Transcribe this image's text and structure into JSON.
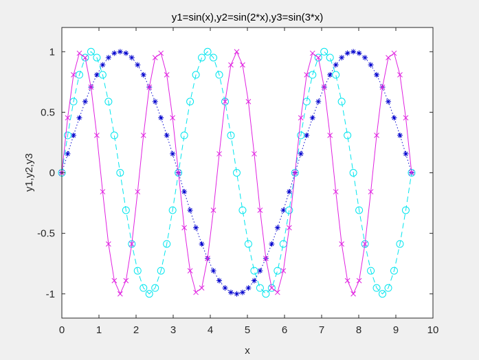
{
  "chart_data": {
    "type": "line",
    "title": "y1=sin(x),y2=sin(2*x),y3=sin(3*x)",
    "xlabel": "x",
    "ylabel": "y1,y2,y3",
    "xlim": [
      0,
      10
    ],
    "ylim": [
      -1.2,
      1.2
    ],
    "xticks": [
      0,
      1,
      2,
      3,
      4,
      5,
      6,
      7,
      8,
      9,
      10
    ],
    "yticks": [
      -1,
      -0.5,
      0,
      0.5,
      1
    ],
    "xtick_labels": [
      "0",
      "1",
      "2",
      "3",
      "4",
      "5",
      "6",
      "7",
      "8",
      "9",
      "10"
    ],
    "ytick_labels": [
      "-1",
      "-0.5",
      "0",
      "0.5",
      "1"
    ],
    "grid": false,
    "x": [
      0,
      0.1571,
      0.3142,
      0.4712,
      0.6283,
      0.7854,
      0.9425,
      1.0996,
      1.2566,
      1.4137,
      1.5708,
      1.7279,
      1.885,
      2.042,
      2.1991,
      2.3562,
      2.5133,
      2.6704,
      2.8274,
      2.9845,
      3.1416,
      3.2987,
      3.4558,
      3.6128,
      3.7699,
      3.927,
      4.0841,
      4.2412,
      4.3982,
      4.5553,
      4.7124,
      4.8695,
      5.0265,
      5.1836,
      5.3407,
      5.4978,
      5.6549,
      5.8119,
      5.969,
      6.1261,
      6.2832,
      6.4403,
      6.5973,
      6.7544,
      6.9115,
      7.0686,
      7.2257,
      7.3827,
      7.5398,
      7.6969,
      7.854,
      8.0111,
      8.1681,
      8.3252,
      8.4823,
      8.6394,
      8.7965,
      8.9535,
      9.1106,
      9.2677,
      9.4248
    ],
    "series": [
      {
        "color": "#0000cd",
        "line_style": "dotted",
        "marker": "asterisk",
        "values": [
          0,
          0.1564,
          0.309,
          0.454,
          0.5878,
          0.7071,
          0.809,
          0.891,
          0.9511,
          0.9877,
          1,
          0.9877,
          0.9511,
          0.891,
          0.809,
          0.7071,
          0.5878,
          0.454,
          0.309,
          0.1564,
          0,
          -0.1564,
          -0.309,
          -0.454,
          -0.5878,
          -0.7071,
          -0.809,
          -0.891,
          -0.9511,
          -0.9877,
          -1,
          -0.9877,
          -0.9511,
          -0.891,
          -0.809,
          -0.7071,
          -0.5878,
          -0.454,
          -0.309,
          -0.1564,
          0,
          0.1564,
          0.309,
          0.454,
          0.5878,
          0.7071,
          0.809,
          0.891,
          0.9511,
          0.9877,
          1,
          0.9877,
          0.9511,
          0.891,
          0.809,
          0.7071,
          0.5878,
          0.454,
          0.309,
          0.1564,
          0
        ]
      },
      {
        "color": "#00e5ee",
        "line_style": "dashed",
        "marker": "circle",
        "values": [
          0,
          0.309,
          0.5878,
          0.809,
          0.9511,
          1,
          0.9511,
          0.809,
          0.5878,
          0.309,
          0,
          -0.309,
          -0.5878,
          -0.809,
          -0.9511,
          -1,
          -0.9511,
          -0.809,
          -0.5878,
          -0.309,
          0,
          0.309,
          0.5878,
          0.809,
          0.9511,
          1,
          0.9511,
          0.809,
          0.5878,
          0.309,
          0,
          -0.309,
          -0.5878,
          -0.809,
          -0.9511,
          -1,
          -0.9511,
          -0.809,
          -0.5878,
          -0.309,
          0,
          0.309,
          0.5878,
          0.809,
          0.9511,
          1,
          0.9511,
          0.809,
          0.5878,
          0.309,
          0,
          -0.309,
          -0.5878,
          -0.809,
          -0.9511,
          -1,
          -0.9511,
          -0.809,
          -0.5878,
          -0.309,
          0
        ]
      },
      {
        "color": "#e020e0",
        "line_style": "solid",
        "marker": "x",
        "values": [
          0,
          0.454,
          0.809,
          0.9877,
          0.9511,
          0.7071,
          0.309,
          -0.1564,
          -0.5878,
          -0.891,
          -1,
          -0.891,
          -0.5878,
          -0.1564,
          0.309,
          0.7071,
          0.9511,
          0.9877,
          0.809,
          0.454,
          0,
          -0.454,
          -0.809,
          -0.9877,
          -0.9511,
          -0.7071,
          -0.309,
          0.1564,
          0.5878,
          0.891,
          1,
          0.891,
          0.5878,
          0.1564,
          -0.309,
          -0.7071,
          -0.9511,
          -0.9877,
          -0.809,
          -0.454,
          0,
          0.454,
          0.809,
          0.9877,
          0.9511,
          0.7071,
          0.309,
          -0.1564,
          -0.5878,
          -0.891,
          -1,
          -0.891,
          -0.5878,
          -0.1564,
          0.309,
          0.7071,
          0.9511,
          0.9877,
          0.809,
          0.454,
          0
        ]
      }
    ]
  }
}
